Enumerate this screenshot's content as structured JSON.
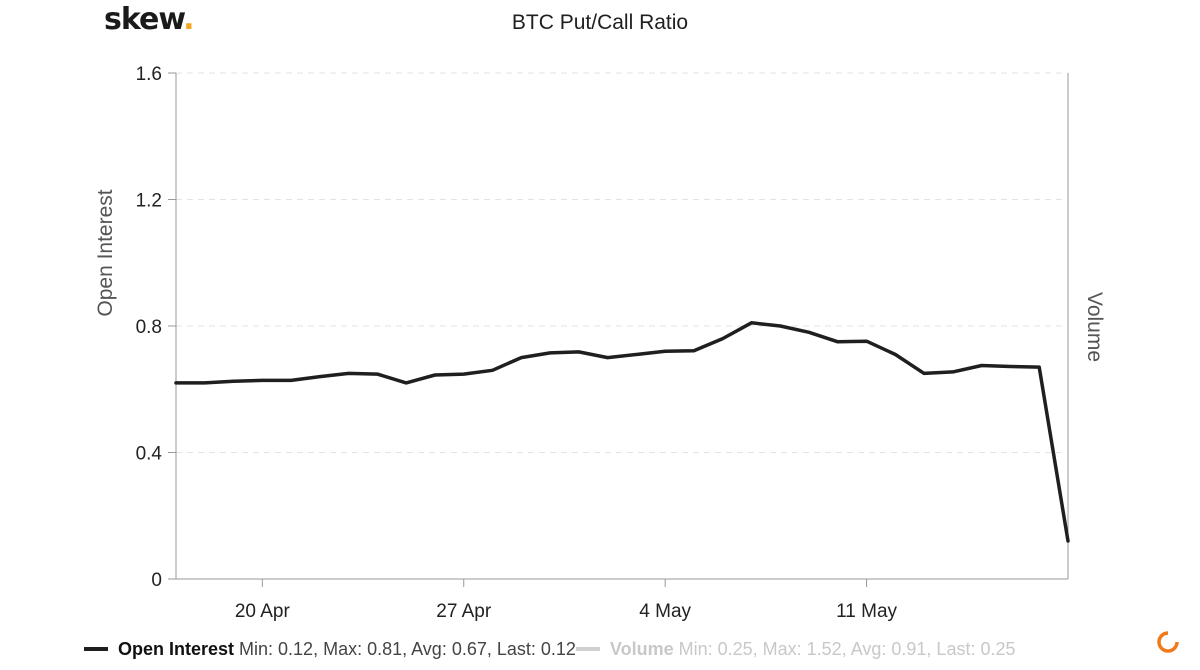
{
  "brand": {
    "name": "skew",
    "dot": "."
  },
  "chart_data": {
    "type": "line",
    "title": "BTC Put/Call Ratio",
    "ylabel": "Open Interest",
    "y2label": "Volume",
    "ylim": [
      0,
      1.6
    ],
    "yticks": [
      "0",
      "0.4",
      "0.8",
      "1.2",
      "1.6"
    ],
    "ytick_values": [
      0,
      0.4,
      0.8,
      1.2,
      1.6
    ],
    "xlim": [
      "2020-04-17",
      "2020-05-18"
    ],
    "xticks": [
      {
        "label": "20 Apr",
        "date": "2020-04-20"
      },
      {
        "label": "27 Apr",
        "date": "2020-04-27"
      },
      {
        "label": "4 May",
        "date": "2020-05-04"
      },
      {
        "label": "11 May",
        "date": "2020-05-11"
      }
    ],
    "grid": true,
    "legend_position": "bottom-left",
    "series": [
      {
        "name": "Open Interest",
        "color": "#1f1f1f",
        "visible": true,
        "stats": "Min: 0.12, Max: 0.81, Avg: 0.67, Last: 0.12",
        "x": [
          "2020-04-17",
          "2020-04-18",
          "2020-04-19",
          "2020-04-20",
          "2020-04-21",
          "2020-04-22",
          "2020-04-23",
          "2020-04-24",
          "2020-04-25",
          "2020-04-26",
          "2020-04-27",
          "2020-04-28",
          "2020-04-29",
          "2020-04-30",
          "2020-05-01",
          "2020-05-02",
          "2020-05-03",
          "2020-05-04",
          "2020-05-05",
          "2020-05-06",
          "2020-05-07",
          "2020-05-08",
          "2020-05-09",
          "2020-05-10",
          "2020-05-11",
          "2020-05-12",
          "2020-05-13",
          "2020-05-14",
          "2020-05-15",
          "2020-05-16",
          "2020-05-17",
          "2020-05-18"
        ],
        "values": [
          0.62,
          0.62,
          0.625,
          0.628,
          0.628,
          0.64,
          0.65,
          0.648,
          0.62,
          0.645,
          0.648,
          0.66,
          0.7,
          0.715,
          0.718,
          0.7,
          0.71,
          0.72,
          0.722,
          0.76,
          0.81,
          0.8,
          0.78,
          0.75,
          0.752,
          0.71,
          0.65,
          0.655,
          0.675,
          0.672,
          0.67,
          0.12
        ]
      },
      {
        "name": "Volume",
        "color": "#d0d0d0",
        "visible": false,
        "stats": "Min: 0.25, Max: 1.52, Avg: 0.91, Last: 0.25"
      }
    ]
  }
}
